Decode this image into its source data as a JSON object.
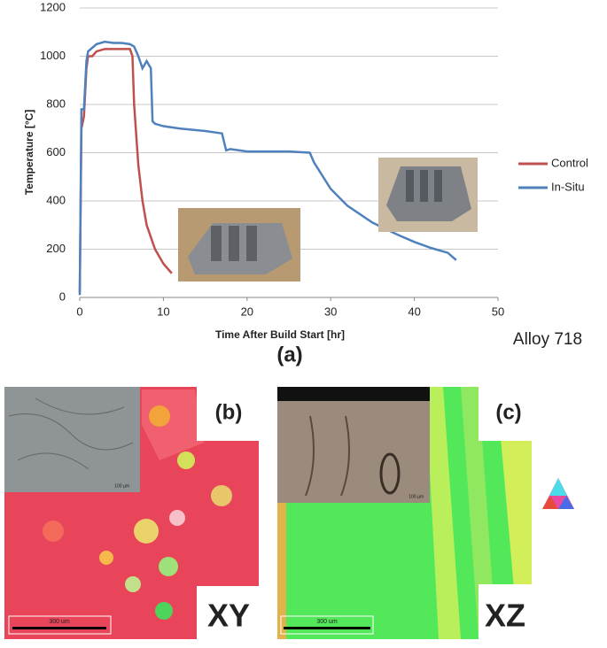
{
  "chart_data": {
    "type": "line",
    "xlabel": "Time After Build Start [hr]",
    "ylabel": "Temperature [°C]",
    "xlim": [
      0,
      50
    ],
    "xticks": [
      0,
      10,
      20,
      30,
      40,
      50
    ],
    "ylim": [
      0,
      1200
    ],
    "yticks": [
      0,
      200,
      400,
      600,
      800,
      1000,
      1200
    ],
    "grid": true,
    "legend": "right",
    "annotations": [
      "Alloy 718",
      "(a)"
    ],
    "series": [
      {
        "name": "Control",
        "color": "#c0504d",
        "x": [
          0,
          0.2,
          0.5,
          0.8,
          1,
          1.5,
          2,
          3,
          4,
          5,
          6,
          6.3,
          6.5,
          7,
          7.5,
          8,
          9,
          10,
          11
        ],
        "values": [
          20,
          700,
          750,
          950,
          1000,
          1000,
          1020,
          1030,
          1030,
          1030,
          1030,
          1000,
          800,
          550,
          400,
          300,
          200,
          140,
          100
        ]
      },
      {
        "name": "In-Situ",
        "color": "#4f81bd",
        "x": [
          0,
          0.2,
          0.5,
          0.8,
          1,
          2,
          3,
          4,
          5,
          6,
          6.5,
          7,
          7.5,
          8,
          8.5,
          8.7,
          9,
          10,
          12,
          15,
          17,
          17.5,
          18,
          20,
          25,
          27.5,
          28,
          30,
          32,
          35,
          38,
          40,
          42,
          44,
          44.5,
          45
        ],
        "values": [
          10,
          780,
          780,
          980,
          1020,
          1050,
          1060,
          1055,
          1055,
          1050,
          1040,
          1000,
          950,
          980,
          950,
          730,
          720,
          710,
          700,
          690,
          680,
          610,
          615,
          605,
          605,
          600,
          560,
          450,
          380,
          310,
          260,
          230,
          205,
          185,
          170,
          155
        ]
      }
    ]
  },
  "panels": [
    {
      "label": "(b)",
      "plane": "XY",
      "scale_bar": "300 um",
      "inset_scale": "100 µm"
    },
    {
      "label": "(c)",
      "plane": "XZ",
      "scale_bar": "300 um",
      "inset_scale": "100 µm"
    }
  ]
}
